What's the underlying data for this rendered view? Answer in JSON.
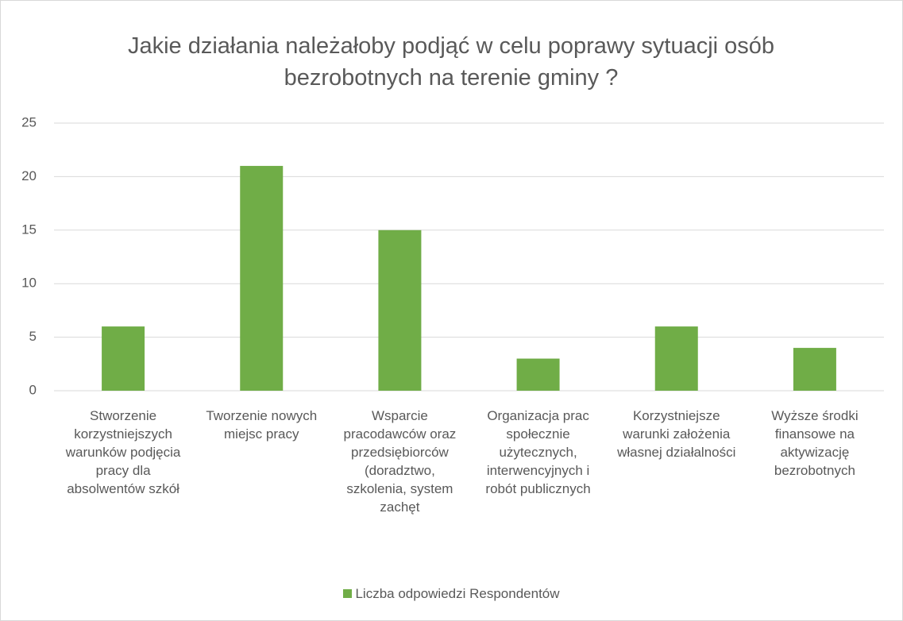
{
  "chart_data": {
    "type": "bar",
    "title": "Jakie działania należałoby podjąć w celu poprawy sytuacji osób bezrobotnych na terenie gminy ?",
    "categories": [
      "Stworzenie korzystniejszych warunków podjęcia pracy dla absolwentów szkół",
      "Tworzenie nowych miejsc pracy",
      "Wsparcie pracodawców oraz przedsiębiorców (doradztwo, szkolenia, system zachęt",
      "Organizacja prac społecznie użytecznych, interwencyjnych i robót publicznych",
      "Korzystniejsze warunki założenia własnej działalności",
      "Wyższe środki finansowe na aktywizację bezrobotnych"
    ],
    "series": [
      {
        "name": "Liczba odpowiedzi Respondentów",
        "color": "#70ad47",
        "values": [
          6,
          21,
          15,
          3,
          6,
          4
        ]
      }
    ],
    "ylim": [
      0,
      25
    ],
    "yticks": [
      0,
      5,
      10,
      15,
      20,
      25
    ],
    "grid": true,
    "legend": "bottom"
  }
}
